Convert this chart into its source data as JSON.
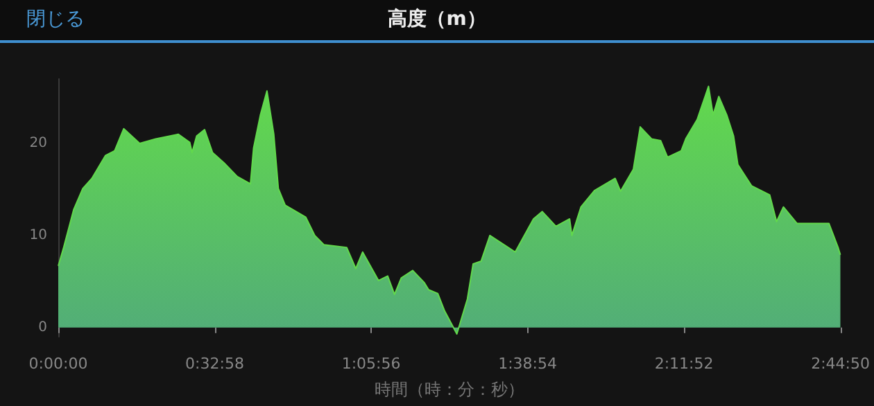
{
  "chart_data": {
    "type": "area",
    "title": "高度（m）",
    "xlabel": "時間（時：分：秒）",
    "annotations": [
      "閉じる"
    ],
    "x": [
      0,
      0.019,
      0.054,
      0.086,
      0.118,
      0.166,
      0.198,
      0.23,
      0.286,
      0.342,
      0.422,
      0.462,
      0.47,
      0.486,
      0.514,
      0.542,
      0.582,
      0.629,
      0.675,
      0.686,
      0.71,
      0.733,
      0.757,
      0.773,
      0.797,
      0.869,
      0.901,
      0.933,
      1.013,
      1.045,
      1.069,
      1.125,
      1.157,
      1.181,
      1.205,
      1.245,
      1.285,
      1.301,
      1.333,
      1.357,
      1.4,
      1.437,
      1.457,
      1.485,
      1.516,
      1.605,
      1.669,
      1.7,
      1.748,
      1.796,
      1.804,
      1.836,
      1.884,
      1.956,
      1.975,
      2.02,
      2.044,
      2.084,
      2.116,
      2.14,
      2.188,
      2.204,
      2.244,
      2.284,
      2.3,
      2.32,
      2.348,
      2.372,
      2.387,
      2.435,
      2.499,
      2.523,
      2.547,
      2.595,
      2.659,
      2.707,
      2.739,
      2.747
    ],
    "series": [
      {
        "color": "#62d94c",
        "values": [
          6.7,
          8.7,
          12.8,
          15.1,
          16.2,
          18.7,
          19.2,
          21.6,
          20.0,
          20.5,
          21.0,
          20.1,
          19.0,
          20.8,
          21.5,
          19.0,
          17.9,
          16.4,
          15.6,
          19.5,
          23.1,
          25.7,
          21.0,
          15.1,
          13.3,
          12.0,
          10.0,
          9.0,
          8.7,
          6.4,
          8.2,
          5.1,
          5.6,
          3.6,
          5.4,
          6.2,
          4.9,
          4.1,
          3.7,
          1.8,
          -0.7,
          3.1,
          6.9,
          7.2,
          10.0,
          8.2,
          11.8,
          12.6,
          11.0,
          11.8,
          10.0,
          13.1,
          14.9,
          16.2,
          14.8,
          17.2,
          21.8,
          20.5,
          20.3,
          18.5,
          19.2,
          20.5,
          22.6,
          26.2,
          23.1,
          25.1,
          23.1,
          20.8,
          17.7,
          15.4,
          14.4,
          11.5,
          13.1,
          11.3,
          11.3,
          11.3,
          8.7,
          7.9
        ]
      }
    ],
    "xlim": [
      0,
      2.747222
    ],
    "xticks": [
      {
        "value": 0,
        "label": "0:00:00"
      },
      {
        "value": 0.549444,
        "label": "0:32:58"
      },
      {
        "value": 1.098889,
        "label": "1:05:56"
      },
      {
        "value": 1.648333,
        "label": "1:38:54"
      },
      {
        "value": 2.197778,
        "label": "2:11:52"
      },
      {
        "value": 2.747222,
        "label": "2:44:50"
      }
    ],
    "ylim": [
      -1,
      27
    ],
    "yticks": [
      0,
      10,
      20
    ],
    "grid": false
  }
}
